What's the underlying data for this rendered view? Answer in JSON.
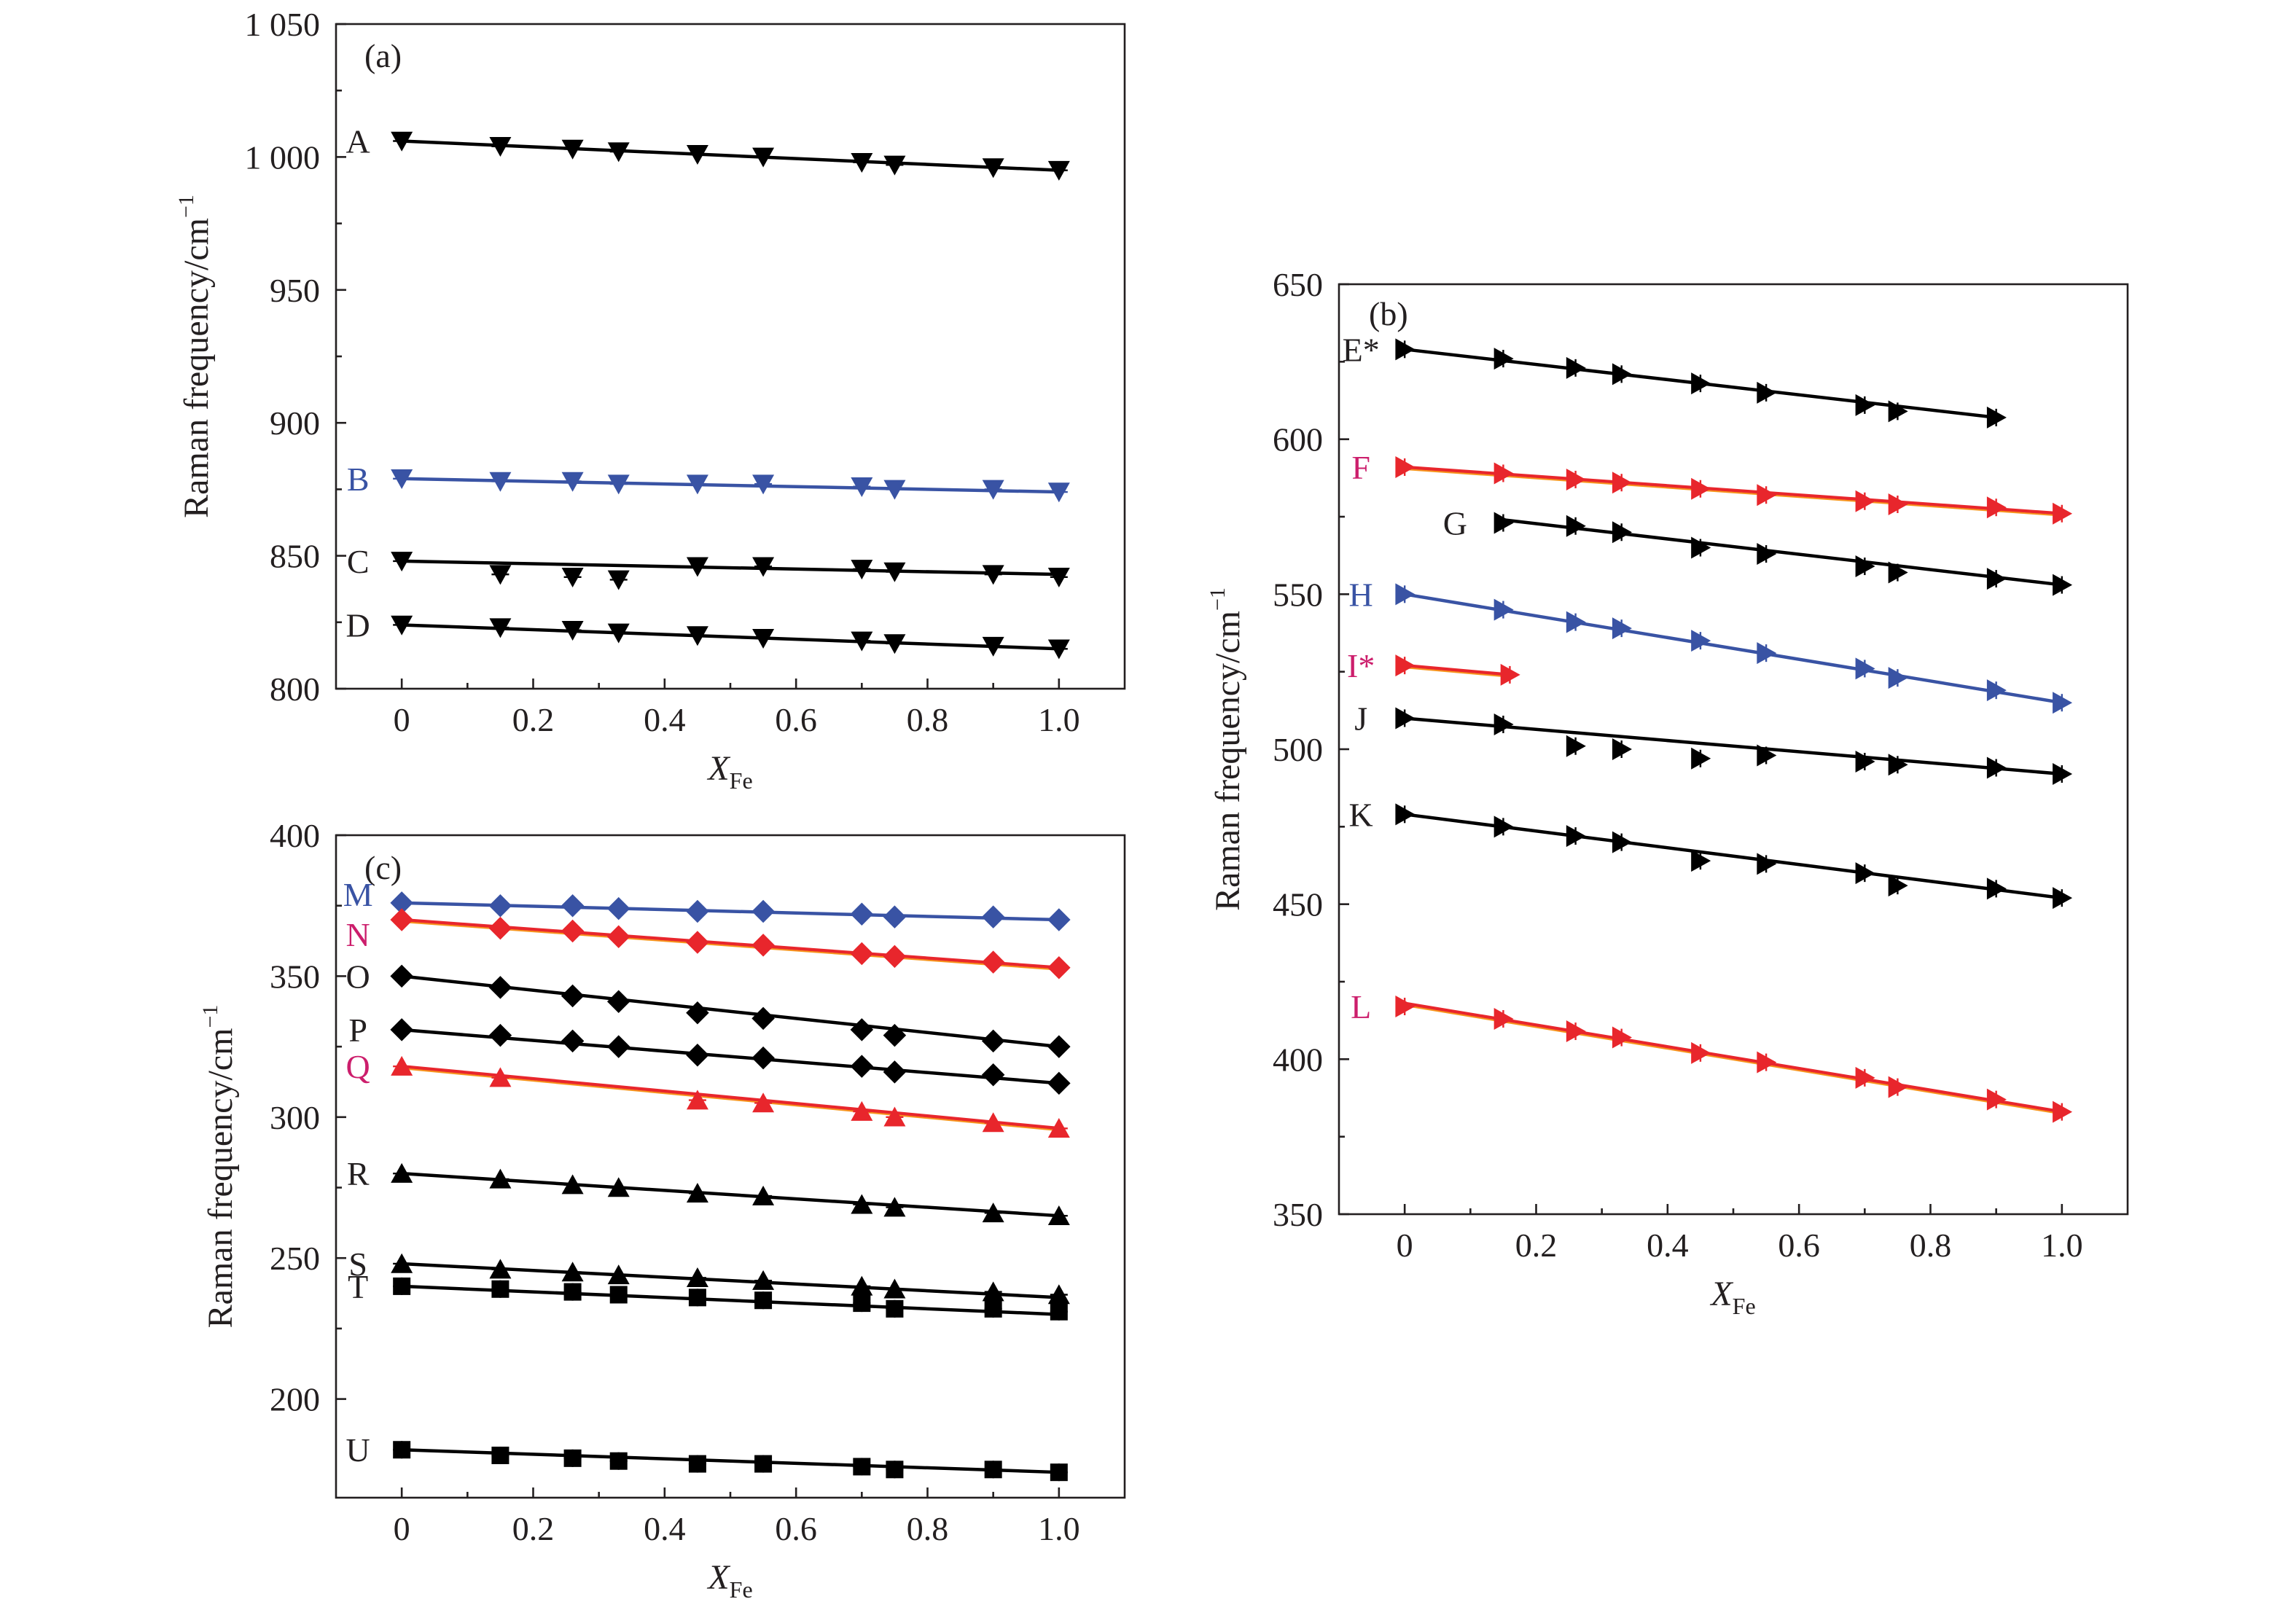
{
  "x_axis_label": {
    "var": "X",
    "sub": "Fe"
  },
  "colors": {
    "black": "#000000",
    "blue": "#3953a4",
    "red": "#e8262c",
    "magenta": "#cc1e6c",
    "orange": "#f7941d"
  },
  "chart_data": [
    {
      "panel": "(a)",
      "type": "scatter",
      "marker": "triangle-down",
      "xlabel": "X_Fe",
      "ylabel": "Raman frequency/cm",
      "ylabel_sup": "−1",
      "xlim": [
        -0.1,
        1.1
      ],
      "ylim": [
        800,
        1050
      ],
      "xticks": [
        0,
        0.2,
        0.4,
        0.6,
        0.8,
        1.0
      ],
      "xtick_labels": [
        "0",
        "0.2",
        "0.4",
        "0.6",
        "0.8",
        "1.0"
      ],
      "yticks": [
        800,
        850,
        900,
        950,
        1000,
        1050
      ],
      "ytick_labels": [
        "800",
        "850",
        "900",
        "950",
        "1 000",
        "1 050"
      ],
      "grid": false,
      "series": [
        {
          "name": "A",
          "color": "#000000",
          "label_color": "#231f20",
          "x": [
            0,
            0.15,
            0.26,
            0.33,
            0.45,
            0.55,
            0.7,
            0.75,
            0.9,
            1.0
          ],
          "y": [
            1006,
            1004,
            1003,
            1002,
            1001,
            1000,
            998,
            997,
            996,
            995
          ],
          "fit": [
            1006,
            995
          ]
        },
        {
          "name": "B",
          "color": "#3953a4",
          "label_color": "#3953a4",
          "x": [
            0,
            0.15,
            0.26,
            0.33,
            0.45,
            0.55,
            0.7,
            0.75,
            0.9,
            1.0
          ],
          "y": [
            879,
            878,
            878,
            877,
            877,
            877,
            876,
            875,
            875,
            874
          ],
          "fit": [
            879,
            874
          ]
        },
        {
          "name": "C",
          "color": "#000000",
          "label_color": "#231f20",
          "x": [
            0,
            0.15,
            0.26,
            0.33,
            0.45,
            0.55,
            0.7,
            0.75,
            0.9,
            1.0
          ],
          "y": [
            848,
            843,
            842,
            841,
            846,
            846,
            845,
            844,
            843,
            842
          ],
          "fit": [
            848,
            843
          ]
        },
        {
          "name": "D",
          "color": "#000000",
          "label_color": "#231f20",
          "x": [
            0,
            0.15,
            0.26,
            0.33,
            0.45,
            0.55,
            0.7,
            0.75,
            0.9,
            1.0
          ],
          "y": [
            824,
            823,
            822,
            821,
            820,
            819,
            818,
            817,
            816,
            815
          ],
          "fit": [
            824,
            815
          ]
        }
      ]
    },
    {
      "panel": "(b)",
      "type": "scatter",
      "marker": "triangle-right",
      "xlabel": "X_Fe",
      "ylabel": "Raman frequency/cm",
      "ylabel_sup": "−1",
      "xlim": [
        -0.1,
        1.1
      ],
      "ylim": [
        350,
        650
      ],
      "xticks": [
        0,
        0.2,
        0.4,
        0.6,
        0.8,
        1.0
      ],
      "xtick_labels": [
        "0",
        "0.2",
        "0.4",
        "0.6",
        "0.8",
        "1.0"
      ],
      "yticks": [
        350,
        400,
        450,
        500,
        550,
        600,
        650
      ],
      "ytick_labels": [
        "350",
        "400",
        "450",
        "500",
        "550",
        "600",
        "650"
      ],
      "grid": false,
      "series": [
        {
          "name": "E*",
          "color": "#000000",
          "label_color": "#231f20",
          "x": [
            0,
            0.15,
            0.26,
            0.33,
            0.45,
            0.55,
            0.7,
            0.75,
            0.9
          ],
          "y": [
            629,
            626,
            623,
            621,
            618,
            615,
            611,
            609,
            607
          ],
          "fit": [
            629,
            607
          ],
          "fit_x": [
            0,
            0.9
          ]
        },
        {
          "name": "F",
          "color": "#e8262c",
          "label_color": "#cc1e6c",
          "x": [
            0,
            0.15,
            0.26,
            0.33,
            0.45,
            0.55,
            0.7,
            0.75,
            0.9,
            1.0
          ],
          "y": [
            591,
            589,
            587,
            586,
            584,
            582,
            580,
            579,
            578,
            576
          ],
          "fit": [
            591,
            576
          ]
        },
        {
          "name": "G",
          "color": "#000000",
          "label_color": "#231f20",
          "x": [
            0.15,
            0.26,
            0.33,
            0.45,
            0.55,
            0.7,
            0.75,
            0.9,
            1.0
          ],
          "y": [
            573,
            572,
            570,
            565,
            563,
            559,
            557,
            555,
            553
          ],
          "fit": [
            574,
            553
          ],
          "fit_x": [
            0.15,
            1.0
          ]
        },
        {
          "name": "H",
          "color": "#3953a4",
          "label_color": "#3953a4",
          "x": [
            0,
            0.15,
            0.26,
            0.33,
            0.45,
            0.55,
            0.7,
            0.75,
            0.9,
            1.0
          ],
          "y": [
            550,
            545,
            541,
            539,
            535,
            531,
            526,
            523,
            519,
            515
          ],
          "fit": [
            550,
            515
          ]
        },
        {
          "name": "I*",
          "color": "#e8262c",
          "label_color": "#cc1e6c",
          "x": [
            0,
            0.16
          ],
          "y": [
            527,
            524
          ],
          "fit": [
            527,
            524
          ],
          "fit_x": [
            0,
            0.16
          ]
        },
        {
          "name": "J",
          "color": "#000000",
          "label_color": "#231f20",
          "x": [
            0,
            0.15,
            0.26,
            0.33,
            0.45,
            0.55,
            0.7,
            0.75,
            0.9,
            1.0
          ],
          "y": [
            510,
            508,
            501,
            500,
            497,
            498,
            496,
            495,
            494,
            492
          ],
          "fit": [
            510,
            492
          ]
        },
        {
          "name": "K",
          "color": "#000000",
          "label_color": "#231f20",
          "x": [
            0,
            0.15,
            0.26,
            0.33,
            0.45,
            0.55,
            0.7,
            0.75,
            0.9,
            1.0
          ],
          "y": [
            479,
            475,
            472,
            470,
            464,
            463,
            460,
            456,
            455,
            452
          ],
          "fit": [
            479,
            452
          ]
        },
        {
          "name": "L",
          "color": "#e8262c",
          "label_color": "#cc1e6c",
          "x": [
            0,
            0.15,
            0.26,
            0.33,
            0.45,
            0.55,
            0.7,
            0.75,
            0.9,
            1.0
          ],
          "y": [
            417,
            413,
            409,
            407,
            402,
            399,
            394,
            391,
            387,
            383
          ],
          "fit": [
            418,
            383
          ]
        }
      ]
    },
    {
      "panel": "(c)",
      "type": "scatter",
      "marker": "mixed",
      "xlabel": "X_Fe",
      "ylabel": "Raman frequency/cm",
      "ylabel_sup": "−1",
      "xlim": [
        -0.1,
        1.1
      ],
      "ylim": [
        165,
        400
      ],
      "xticks": [
        0,
        0.2,
        0.4,
        0.6,
        0.8,
        1.0
      ],
      "xtick_labels": [
        "0",
        "0.2",
        "0.4",
        "0.6",
        "0.8",
        "1.0"
      ],
      "yticks": [
        200,
        250,
        300,
        350,
        400
      ],
      "ytick_labels": [
        "200",
        "250",
        "300",
        "350",
        "400"
      ],
      "grid": false,
      "series": [
        {
          "name": "M",
          "marker": "diamond",
          "color": "#3953a4",
          "label_color": "#3953a4",
          "x": [
            0,
            0.15,
            0.26,
            0.33,
            0.45,
            0.55,
            0.7,
            0.75,
            0.9,
            1.0
          ],
          "y": [
            376,
            375,
            375,
            374,
            373,
            373,
            372,
            371,
            371,
            370
          ],
          "fit": [
            376,
            370
          ]
        },
        {
          "name": "N",
          "marker": "diamond",
          "color": "#e8262c",
          "label_color": "#cc1e6c",
          "x": [
            0,
            0.15,
            0.26,
            0.33,
            0.45,
            0.55,
            0.7,
            0.75,
            0.9,
            1.0
          ],
          "y": [
            370,
            367,
            366,
            364,
            362,
            361,
            358,
            357,
            355,
            353
          ],
          "fit": [
            370,
            353
          ]
        },
        {
          "name": "O",
          "marker": "diamond",
          "color": "#000000",
          "label_color": "#231f20",
          "x": [
            0,
            0.15,
            0.26,
            0.33,
            0.45,
            0.55,
            0.7,
            0.75,
            0.9,
            1.0
          ],
          "y": [
            350,
            346,
            343,
            341,
            337,
            335,
            331,
            329,
            327,
            325
          ],
          "fit": [
            350,
            325
          ]
        },
        {
          "name": "P",
          "marker": "diamond",
          "color": "#000000",
          "label_color": "#231f20",
          "x": [
            0,
            0.15,
            0.26,
            0.33,
            0.45,
            0.55,
            0.7,
            0.75,
            0.9,
            1.0
          ],
          "y": [
            331,
            329,
            327,
            325,
            322,
            321,
            318,
            316,
            315,
            312
          ],
          "fit": [
            331,
            312
          ]
        },
        {
          "name": "Q",
          "marker": "triangle-up",
          "color": "#e8262c",
          "label_color": "#cc1e6c",
          "x": [
            0,
            0.15,
            0.45,
            0.55,
            0.7,
            0.75,
            0.9,
            1.0
          ],
          "y": [
            318,
            314,
            306,
            305,
            302,
            300,
            298,
            296
          ],
          "fit": [
            318,
            296
          ]
        },
        {
          "name": "R",
          "marker": "triangle-up",
          "color": "#000000",
          "label_color": "#231f20",
          "x": [
            0,
            0.15,
            0.26,
            0.33,
            0.45,
            0.55,
            0.7,
            0.75,
            0.9,
            1.0
          ],
          "y": [
            280,
            278,
            276,
            275,
            273,
            272,
            269,
            268,
            266,
            265
          ],
          "fit": [
            280,
            265
          ]
        },
        {
          "name": "S",
          "marker": "triangle-up",
          "color": "#000000",
          "label_color": "#231f20",
          "x": [
            0,
            0.15,
            0.26,
            0.33,
            0.45,
            0.55,
            0.7,
            0.75,
            0.9,
            1.0
          ],
          "y": [
            248,
            246,
            245,
            244,
            243,
            242,
            240,
            239,
            238,
            237
          ],
          "fit": [
            248,
            236
          ]
        },
        {
          "name": "T",
          "marker": "square",
          "color": "#000000",
          "label_color": "#231f20",
          "x": [
            0,
            0.15,
            0.26,
            0.33,
            0.45,
            0.55,
            0.7,
            0.75,
            0.9,
            1.0
          ],
          "y": [
            240,
            239,
            238,
            237,
            236,
            235,
            234,
            232,
            232,
            231
          ],
          "fit": [
            240,
            230
          ]
        },
        {
          "name": "U",
          "marker": "square",
          "color": "#000000",
          "label_color": "#231f20",
          "x": [
            0,
            0.15,
            0.26,
            0.33,
            0.45,
            0.55,
            0.7,
            0.75,
            0.9,
            1.0
          ],
          "y": [
            182,
            180,
            179,
            178,
            177,
            177,
            176,
            175,
            175,
            174
          ],
          "fit": [
            182,
            174
          ]
        }
      ]
    }
  ]
}
